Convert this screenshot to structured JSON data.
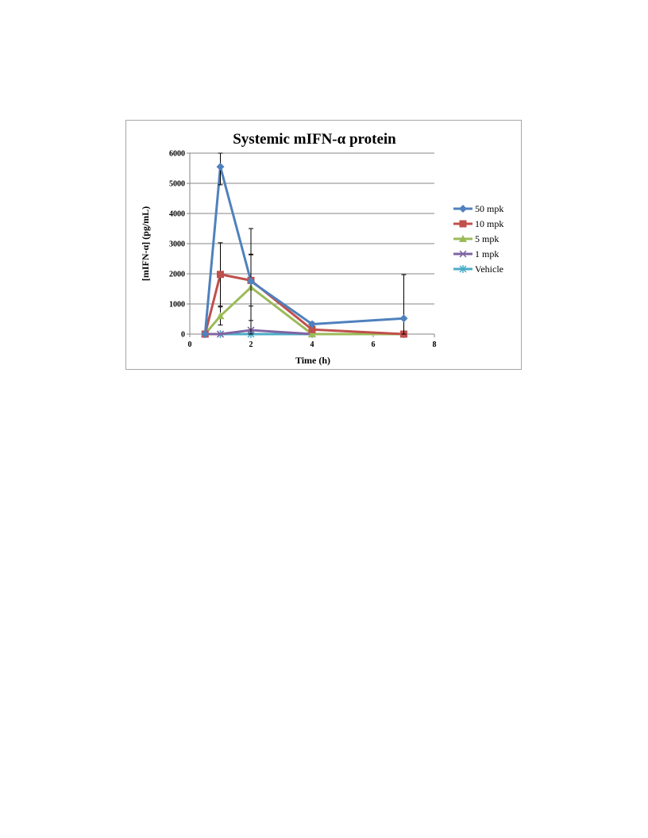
{
  "chart_data": {
    "type": "line",
    "title": "Systemic mIFN-α protein",
    "xlabel": "Time (h)",
    "ylabel": "[mIFN-α] (pg/mL)",
    "xlim": [
      0,
      8
    ],
    "ylim": [
      0,
      6000
    ],
    "x_ticks": [
      "0",
      "2",
      "4",
      "6",
      "8"
    ],
    "y_ticks": [
      "0",
      "1000",
      "2000",
      "3000",
      "4000",
      "5000",
      "6000"
    ],
    "grid": "horizontal",
    "legend_position": "right",
    "error_bar_color": "#000000",
    "series": [
      {
        "name": "50 mpk",
        "color": "#4f81bd",
        "marker": "diamond",
        "points": [
          {
            "x": 0.5,
            "y": 0,
            "err": 0
          },
          {
            "x": 1,
            "y": 5550,
            "err": 600
          },
          {
            "x": 2,
            "y": 1750,
            "err": 1750
          },
          {
            "x": 4,
            "y": 330,
            "err": 60
          },
          {
            "x": 7,
            "y": 520,
            "err": 1450
          }
        ]
      },
      {
        "name": "10 mpk",
        "color": "#c0504d",
        "marker": "square",
        "points": [
          {
            "x": 0.5,
            "y": 0,
            "err": 0
          },
          {
            "x": 1,
            "y": 1980,
            "err": 1050
          },
          {
            "x": 2,
            "y": 1780,
            "err": 850
          },
          {
            "x": 4,
            "y": 150,
            "err": 60
          },
          {
            "x": 7,
            "y": 0,
            "err": 0
          }
        ]
      },
      {
        "name": "5 mpk",
        "color": "#9bbb59",
        "marker": "triangle",
        "points": [
          {
            "x": 0.5,
            "y": 0,
            "err": 0
          },
          {
            "x": 1,
            "y": 600,
            "err": 300
          },
          {
            "x": 2,
            "y": 1550,
            "err": 1100
          },
          {
            "x": 4,
            "y": 0,
            "err": 0
          },
          {
            "x": 7,
            "y": 0,
            "err": 0
          }
        ]
      },
      {
        "name": "1 mpk",
        "color": "#8064a2",
        "marker": "x",
        "points": [
          {
            "x": 0.5,
            "y": 0,
            "err": 0
          },
          {
            "x": 1,
            "y": 0,
            "err": 0
          },
          {
            "x": 2,
            "y": 130,
            "err": 0
          },
          {
            "x": 4,
            "y": 0,
            "err": 0
          },
          {
            "x": 7,
            "y": 0,
            "err": 0
          }
        ]
      },
      {
        "name": "Vehicle",
        "color": "#4bacc6",
        "marker": "star",
        "points": [
          {
            "x": 0.5,
            "y": 0,
            "err": 0
          },
          {
            "x": 1,
            "y": 0,
            "err": 0
          },
          {
            "x": 2,
            "y": 0,
            "err": 0
          },
          {
            "x": 4,
            "y": 0,
            "err": 0
          },
          {
            "x": 7,
            "y": 0,
            "err": 0
          }
        ]
      }
    ]
  }
}
